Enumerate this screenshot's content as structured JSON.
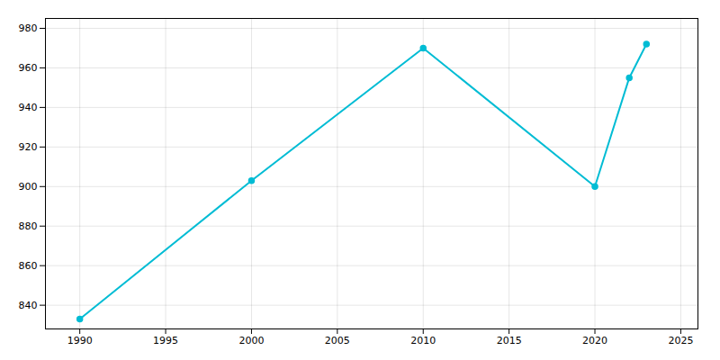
{
  "chart_data": {
    "type": "line",
    "x": [
      1990,
      2000,
      2010,
      2020,
      2022,
      2023
    ],
    "values": [
      833,
      903,
      970,
      900,
      955,
      972
    ],
    "color": "#00BCD4",
    "marker": "circle",
    "xlim": [
      1988,
      2026
    ],
    "ylim": [
      828,
      985
    ],
    "xticks": [
      1990,
      1995,
      2000,
      2005,
      2010,
      2015,
      2020,
      2025
    ],
    "yticks": [
      840,
      860,
      880,
      900,
      920,
      940,
      960,
      980
    ],
    "grid": true
  }
}
